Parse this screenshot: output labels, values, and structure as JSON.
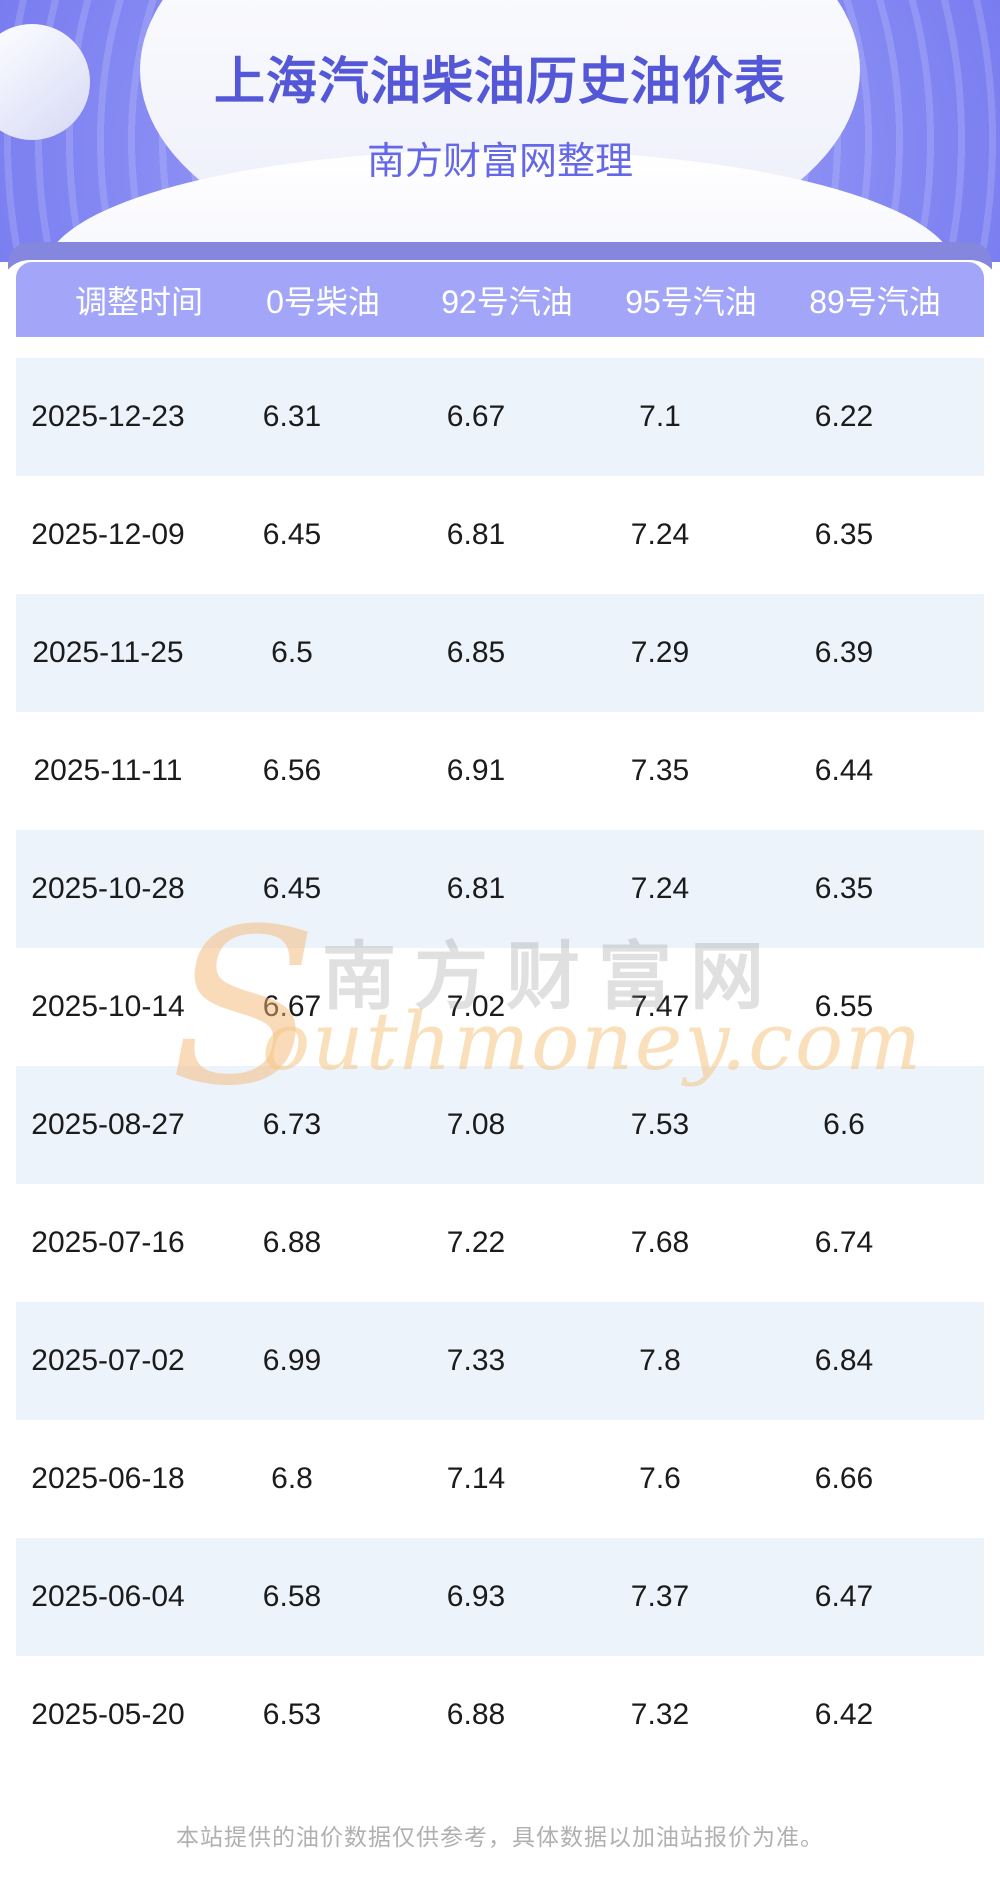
{
  "header": {
    "title": "上海汽油柴油历史油价表",
    "subtitle": "南方财富网整理"
  },
  "table": {
    "columns": [
      "调整时间",
      "0号柴油",
      "92号汽油",
      "95号汽油",
      "89号汽油"
    ],
    "rows": [
      [
        "2025-12-23",
        "6.31",
        "6.67",
        "7.1",
        "6.22"
      ],
      [
        "2025-12-09",
        "6.45",
        "6.81",
        "7.24",
        "6.35"
      ],
      [
        "2025-11-25",
        "6.5",
        "6.85",
        "7.29",
        "6.39"
      ],
      [
        "2025-11-11",
        "6.56",
        "6.91",
        "7.35",
        "6.44"
      ],
      [
        "2025-10-28",
        "6.45",
        "6.81",
        "7.24",
        "6.35"
      ],
      [
        "2025-10-14",
        "6.67",
        "7.02",
        "7.47",
        "6.55"
      ],
      [
        "2025-08-27",
        "6.73",
        "7.08",
        "7.53",
        "6.6"
      ],
      [
        "2025-07-16",
        "6.88",
        "7.22",
        "7.68",
        "6.74"
      ],
      [
        "2025-07-02",
        "6.99",
        "7.33",
        "7.8",
        "6.84"
      ],
      [
        "2025-06-18",
        "6.8",
        "7.14",
        "7.6",
        "6.66"
      ],
      [
        "2025-06-04",
        "6.58",
        "6.93",
        "7.37",
        "6.47"
      ],
      [
        "2025-05-20",
        "6.53",
        "6.88",
        "7.32",
        "6.42"
      ]
    ]
  },
  "watermark": {
    "initial": "S",
    "cn": "南方财富网",
    "domain": "outhmoney.com"
  },
  "footer": {
    "note": "本站提供的油价数据仅供参考，具体数据以加油站报价为准。"
  },
  "colors": {
    "banner_purple": "#6e72ec",
    "band_dark": "#8487dd",
    "band_header": "#a3a6f8",
    "row_alt": "#ecf3fb",
    "title_text": "#5458d6",
    "subtitle_text": "#6467e8",
    "body_text": "#1b1b1b",
    "footer_text": "#b0b0b0",
    "watermark_orange": "#f5cfa0"
  }
}
